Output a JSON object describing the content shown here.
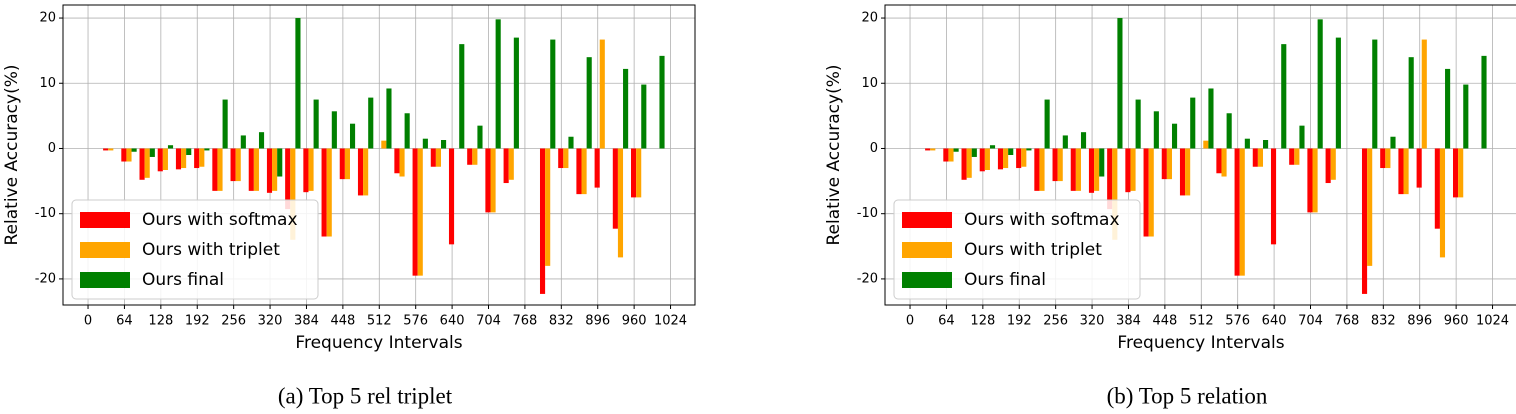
{
  "chart_data": [
    {
      "type": "bar",
      "caption": "(a) Top 5 rel triplet",
      "xlabel": "Frequency Intervals",
      "ylabel": "Relative Accuracy(%)",
      "x": [
        40,
        72,
        104,
        136,
        168,
        200,
        232,
        264,
        296,
        328,
        360,
        392,
        424,
        456,
        488,
        520,
        552,
        584,
        616,
        648,
        680,
        712,
        744,
        776,
        808,
        840,
        872,
        904,
        936,
        968,
        1000
      ],
      "series": [
        {
          "name": "Ours with softmax",
          "color": "#ff0000",
          "values": [
            -0.3,
            -2,
            -4.8,
            -3.5,
            -3.2,
            -3,
            -6.5,
            -5,
            -6.5,
            -6.8,
            -9.3,
            -6.7,
            -13.5,
            -4.7,
            -7.2,
            0,
            -3.8,
            -19.5,
            -2.8,
            -14.7,
            -2.5,
            -9.8,
            -5.3,
            0,
            -22.3,
            -3,
            -7,
            -6,
            -12.3,
            -7.5,
            0
          ]
        },
        {
          "name": "Ours with triplet",
          "color": "#ffa500",
          "values": [
            -0.3,
            -2,
            -4.5,
            -3.3,
            -3,
            -2.8,
            -6.5,
            -5,
            -6.5,
            -6.5,
            -14,
            -6.5,
            -13.5,
            -4.7,
            -7.2,
            1.2,
            -4.3,
            -19.5,
            -2.8,
            0,
            -2.5,
            -9.8,
            -4.8,
            0,
            -18,
            -3,
            -7,
            16.7,
            -16.7,
            -7.5,
            0
          ]
        },
        {
          "name": "Ours final",
          "color": "#008000",
          "values": [
            0,
            -0.5,
            -1.3,
            0.5,
            -1,
            -0.3,
            7.5,
            2,
            2.5,
            -4.3,
            20,
            7.5,
            5.7,
            3.8,
            7.8,
            9.2,
            5.4,
            1.5,
            1.3,
            16,
            3.5,
            19.8,
            17,
            0,
            16.7,
            1.8,
            14,
            0,
            12.2,
            9.8,
            14.2
          ]
        }
      ],
      "xlim": [
        -44,
        1067
      ],
      "xticks": [
        0,
        64,
        128,
        192,
        256,
        320,
        384,
        448,
        512,
        576,
        640,
        704,
        768,
        832,
        896,
        960,
        1024
      ],
      "ylim": [
        -24,
        22
      ],
      "yticks": [
        -20,
        -10,
        0,
        10,
        20
      ],
      "grid": true,
      "legend": "lower left"
    },
    {
      "type": "bar",
      "caption": "(b) Top 5 relation",
      "xlabel": "Frequency Intervals",
      "ylabel": "Relative Accuracy(%)",
      "x": [
        40,
        72,
        104,
        136,
        168,
        200,
        232,
        264,
        296,
        328,
        360,
        392,
        424,
        456,
        488,
        520,
        552,
        584,
        616,
        648,
        680,
        712,
        744,
        776,
        808,
        840,
        872,
        904,
        936,
        968,
        1000
      ],
      "series": [
        {
          "name": "Ours with softmax",
          "color": "#ff0000",
          "values": [
            -0.3,
            -2,
            -4.8,
            -3.5,
            -3.2,
            -3,
            -6.5,
            -5,
            -6.5,
            -6.8,
            -9.3,
            -6.7,
            -13.5,
            -4.7,
            -7.2,
            0,
            -3.8,
            -19.5,
            -2.8,
            -14.7,
            -2.5,
            -9.8,
            -5.3,
            0,
            -22.3,
            -3,
            -7,
            -6,
            -12.3,
            -7.5,
            0
          ]
        },
        {
          "name": "Ours with triplet",
          "color": "#ffa500",
          "values": [
            -0.3,
            -2,
            -4.5,
            -3.3,
            -3,
            -2.8,
            -6.5,
            -5,
            -6.5,
            -6.5,
            -14,
            -6.5,
            -13.5,
            -4.7,
            -7.2,
            1.2,
            -4.3,
            -19.5,
            -2.8,
            0,
            -2.5,
            -9.8,
            -4.8,
            0,
            -18,
            -3,
            -7,
            16.7,
            -16.7,
            -7.5,
            0
          ]
        },
        {
          "name": "Ours final",
          "color": "#008000",
          "values": [
            0,
            -0.5,
            -1.3,
            0.5,
            -1,
            -0.3,
            7.5,
            2,
            2.5,
            -4.3,
            20,
            7.5,
            5.7,
            3.8,
            7.8,
            9.2,
            5.4,
            1.5,
            1.3,
            16,
            3.5,
            19.8,
            17,
            0,
            16.7,
            1.8,
            14,
            0,
            12.2,
            9.8,
            14.2
          ]
        }
      ],
      "xlim": [
        -44,
        1067
      ],
      "xticks": [
        0,
        64,
        128,
        192,
        256,
        320,
        384,
        448,
        512,
        576,
        640,
        704,
        768,
        832,
        896,
        960,
        1024
      ],
      "ylim": [
        -24,
        22
      ],
      "yticks": [
        -20,
        -10,
        0,
        10,
        20
      ],
      "grid": true,
      "legend": "lower left"
    }
  ]
}
